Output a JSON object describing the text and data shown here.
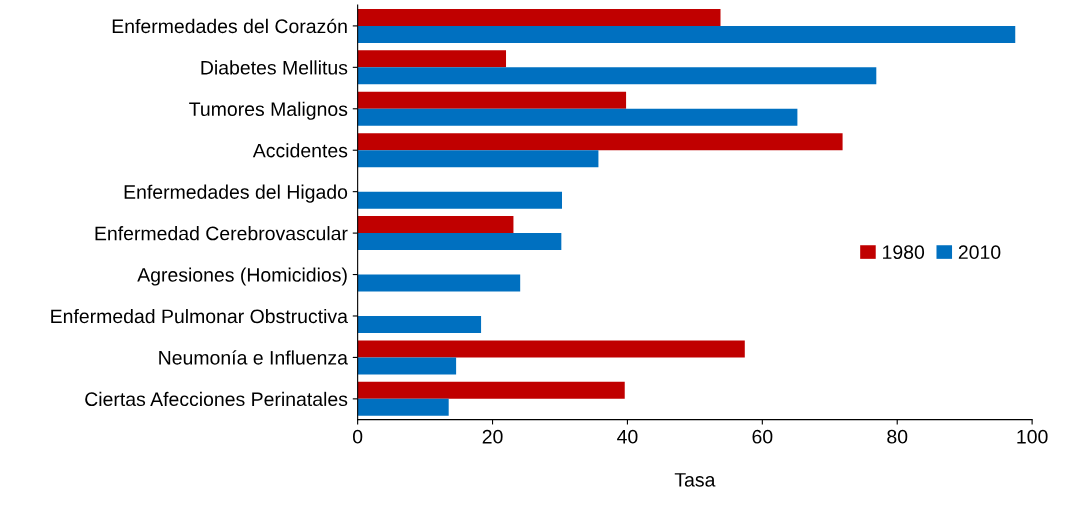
{
  "chart_data": {
    "type": "bar",
    "orientation": "horizontal",
    "xlabel": "Tasa",
    "categories": [
      "Enfermedades del Corazón",
      "Diabetes Mellitus",
      "Tumores Malignos",
      "Accidentes",
      "Enfermedades del Higado",
      "Enfermedad Cerebrovascular",
      "Agresiones (Homicidios)",
      "Enfermedad Pulmonar Obstructiva",
      "Neumonía e Influenza",
      "Ciertas Afecciones Perinatales"
    ],
    "series": [
      {
        "name": "1980",
        "color": "#c00000",
        "values": [
          53.8,
          22.0,
          39.8,
          71.9,
          null,
          23.1,
          null,
          null,
          57.4,
          39.6
        ]
      },
      {
        "name": "2010",
        "color": "#0070c0",
        "values": [
          97.5,
          76.9,
          65.2,
          35.7,
          30.3,
          30.2,
          24.1,
          18.3,
          14.6,
          13.5
        ]
      }
    ],
    "xlim": [
      0,
      100
    ],
    "xticks": [
      0,
      20,
      40,
      60,
      80,
      100
    ],
    "grid": false,
    "legend": "right"
  }
}
